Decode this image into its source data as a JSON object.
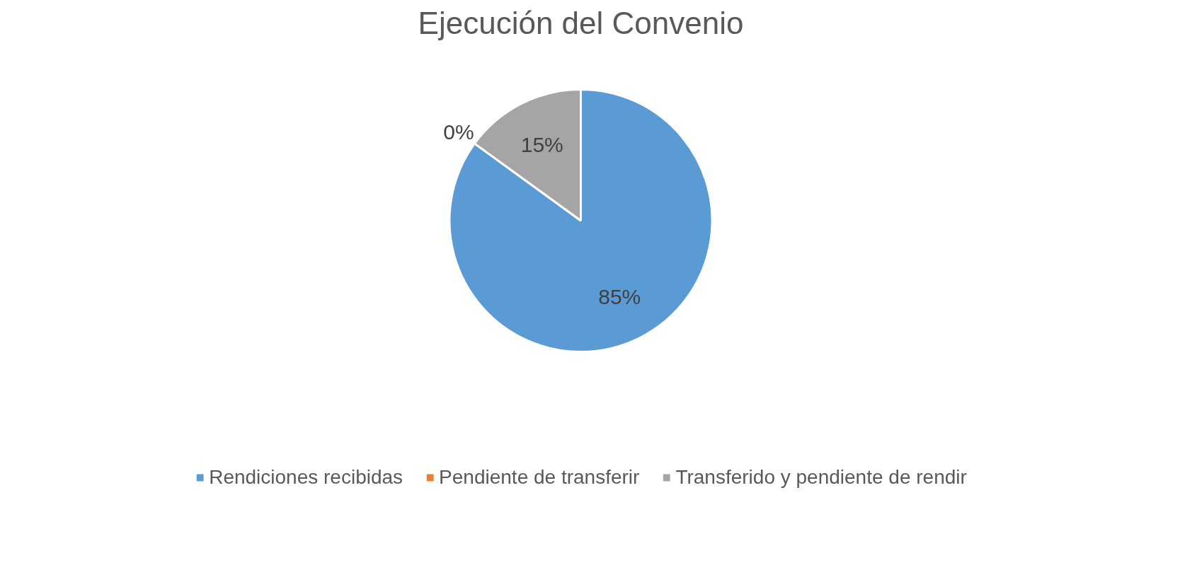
{
  "chart_data": {
    "type": "pie",
    "title": "Ejecución del Convenio",
    "categories": [
      "Rendiciones recibidas",
      "Pendiente de transferir",
      "Transferido y pendiente de rendir"
    ],
    "values": [
      85,
      0,
      15
    ],
    "colors": [
      "#5b9bd5",
      "#ed7d31",
      "#a5a5a5"
    ],
    "value_labels": [
      "85%",
      "0%",
      "15%"
    ],
    "legend": "bottom"
  }
}
